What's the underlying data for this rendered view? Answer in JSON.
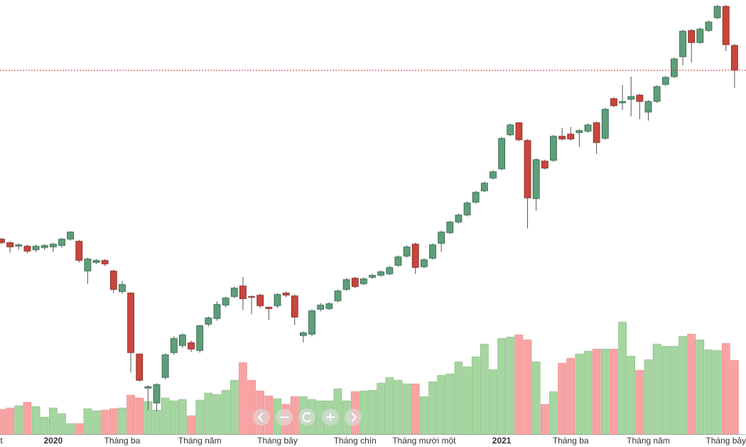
{
  "chart_data": {
    "type": "candlestick",
    "categories": [
      "t",
      null,
      null,
      null,
      null,
      null,
      "2020",
      null,
      null,
      null,
      null,
      null,
      null,
      null,
      "Tháng ba",
      null,
      null,
      null,
      null,
      null,
      null,
      null,
      null,
      "Tháng năm",
      null,
      null,
      null,
      null,
      null,
      null,
      null,
      null,
      "Tháng bảy",
      null,
      null,
      null,
      null,
      null,
      null,
      null,
      null,
      "Tháng chín",
      null,
      null,
      null,
      null,
      null,
      null,
      null,
      "Tháng mười một",
      null,
      null,
      null,
      null,
      null,
      null,
      null,
      null,
      "2021",
      null,
      null,
      null,
      null,
      null,
      null,
      null,
      "Tháng ba",
      null,
      null,
      null,
      null,
      null,
      null,
      null,
      null,
      "Tháng năm",
      null,
      null,
      null,
      null,
      null,
      null,
      null,
      null,
      "Tháng bảy",
      null
    ],
    "open": [
      293,
      288,
      283,
      283,
      278,
      281,
      282,
      284,
      293,
      290,
      248,
      260,
      263,
      248,
      219,
      217,
      131,
      83,
      62,
      98,
      133,
      143,
      147,
      136,
      173,
      181,
      200,
      212,
      227,
      212,
      214,
      197,
      199,
      217,
      213,
      157,
      159,
      194,
      195,
      206,
      222,
      238,
      230,
      239,
      242,
      244,
      256,
      269,
      286,
      254,
      266,
      287,
      302,
      317,
      327,
      345,
      361,
      379,
      392,
      440,
      457,
      432,
      350,
      403,
      404,
      438,
      441,
      443,
      445,
      457,
      435,
      491,
      485,
      490,
      496,
      472,
      487,
      511,
      522,
      550,
      587,
      570,
      587,
      605,
      621,
      566
    ],
    "high": [
      295,
      290,
      287,
      285,
      285,
      286,
      288,
      295,
      304,
      292,
      267,
      265,
      265,
      250,
      234,
      218,
      132,
      87,
      90,
      132,
      156,
      160,
      150,
      172,
      184,
      205,
      212,
      226,
      240,
      214,
      216,
      198,
      217,
      219,
      215,
      163,
      194,
      203,
      204,
      222,
      238,
      240,
      239,
      244,
      249,
      255,
      270,
      284,
      288,
      266,
      287,
      305,
      319,
      329,
      346,
      361,
      374,
      390,
      437,
      456,
      458,
      434,
      407,
      405,
      440,
      450,
      451,
      448,
      456,
      459,
      478,
      493,
      510,
      522,
      498,
      489,
      510,
      523,
      549,
      588,
      589,
      591,
      601,
      623,
      623,
      568
    ],
    "low": [
      286,
      274,
      278,
      273,
      275,
      278,
      275,
      281,
      291,
      260,
      230,
      258,
      255,
      217,
      216,
      105,
      92,
      52,
      50,
      95,
      130,
      140,
      134,
      133,
      170,
      178,
      197,
      210,
      193,
      187,
      196,
      179,
      196,
      211,
      172,
      147,
      156,
      191,
      193,
      204,
      220,
      224,
      228,
      237,
      240,
      242,
      254,
      267,
      244,
      252,
      264,
      275,
      300,
      315,
      325,
      343,
      359,
      377,
      390,
      438,
      431,
      308,
      333,
      391,
      402,
      432,
      432,
      423,
      443,
      413,
      433,
      479,
      475,
      466,
      462,
      460,
      485,
      509,
      520,
      538,
      542,
      568,
      585,
      603,
      558,
      506
    ],
    "close": [
      288,
      282,
      285,
      276,
      283,
      284,
      286,
      293,
      303,
      263,
      265,
      263,
      258,
      222,
      229,
      133,
      94,
      85,
      88,
      130,
      153,
      158,
      138,
      171,
      182,
      201,
      210,
      224,
      209,
      211,
      199,
      195,
      215,
      214,
      183,
      161,
      192,
      200,
      202,
      220,
      236,
      226,
      237,
      242,
      247,
      253,
      268,
      282,
      253,
      264,
      285,
      303,
      317,
      327,
      344,
      359,
      372,
      388,
      435,
      454,
      433,
      351,
      405,
      393,
      438,
      434,
      434,
      446,
      454,
      429,
      476,
      481,
      487,
      494,
      487,
      487,
      508,
      521,
      547,
      586,
      570,
      589,
      599,
      621,
      567,
      531
    ],
    "volume": [
      35,
      37,
      40,
      45,
      39,
      24,
      37,
      29,
      15,
      15,
      36,
      33,
      34,
      36,
      37,
      55,
      51,
      46,
      34,
      51,
      47,
      49,
      26,
      48,
      58,
      56,
      62,
      76,
      101,
      76,
      61,
      54,
      50,
      42,
      53,
      53,
      49,
      47,
      47,
      64,
      47,
      60,
      61,
      62,
      72,
      80,
      76,
      71,
      71,
      53,
      74,
      83,
      85,
      102,
      95,
      109,
      127,
      91,
      135,
      137,
      140,
      133,
      102,
      42,
      60,
      100,
      107,
      113,
      117,
      120,
      120,
      120,
      158,
      110,
      90,
      105,
      127,
      124,
      124,
      138,
      141,
      133,
      119,
      118,
      128,
      104
    ],
    "ylim": [
      0,
      630
    ],
    "volume_ylim": [
      0,
      170
    ],
    "up_color": "#5f9e7a",
    "down_color": "#c9463d",
    "volume_up_color": "#a5d6a0",
    "volume_down_color": "#f8a3a3",
    "price_line": true,
    "price_line_color": "#e0303a"
  }
}
